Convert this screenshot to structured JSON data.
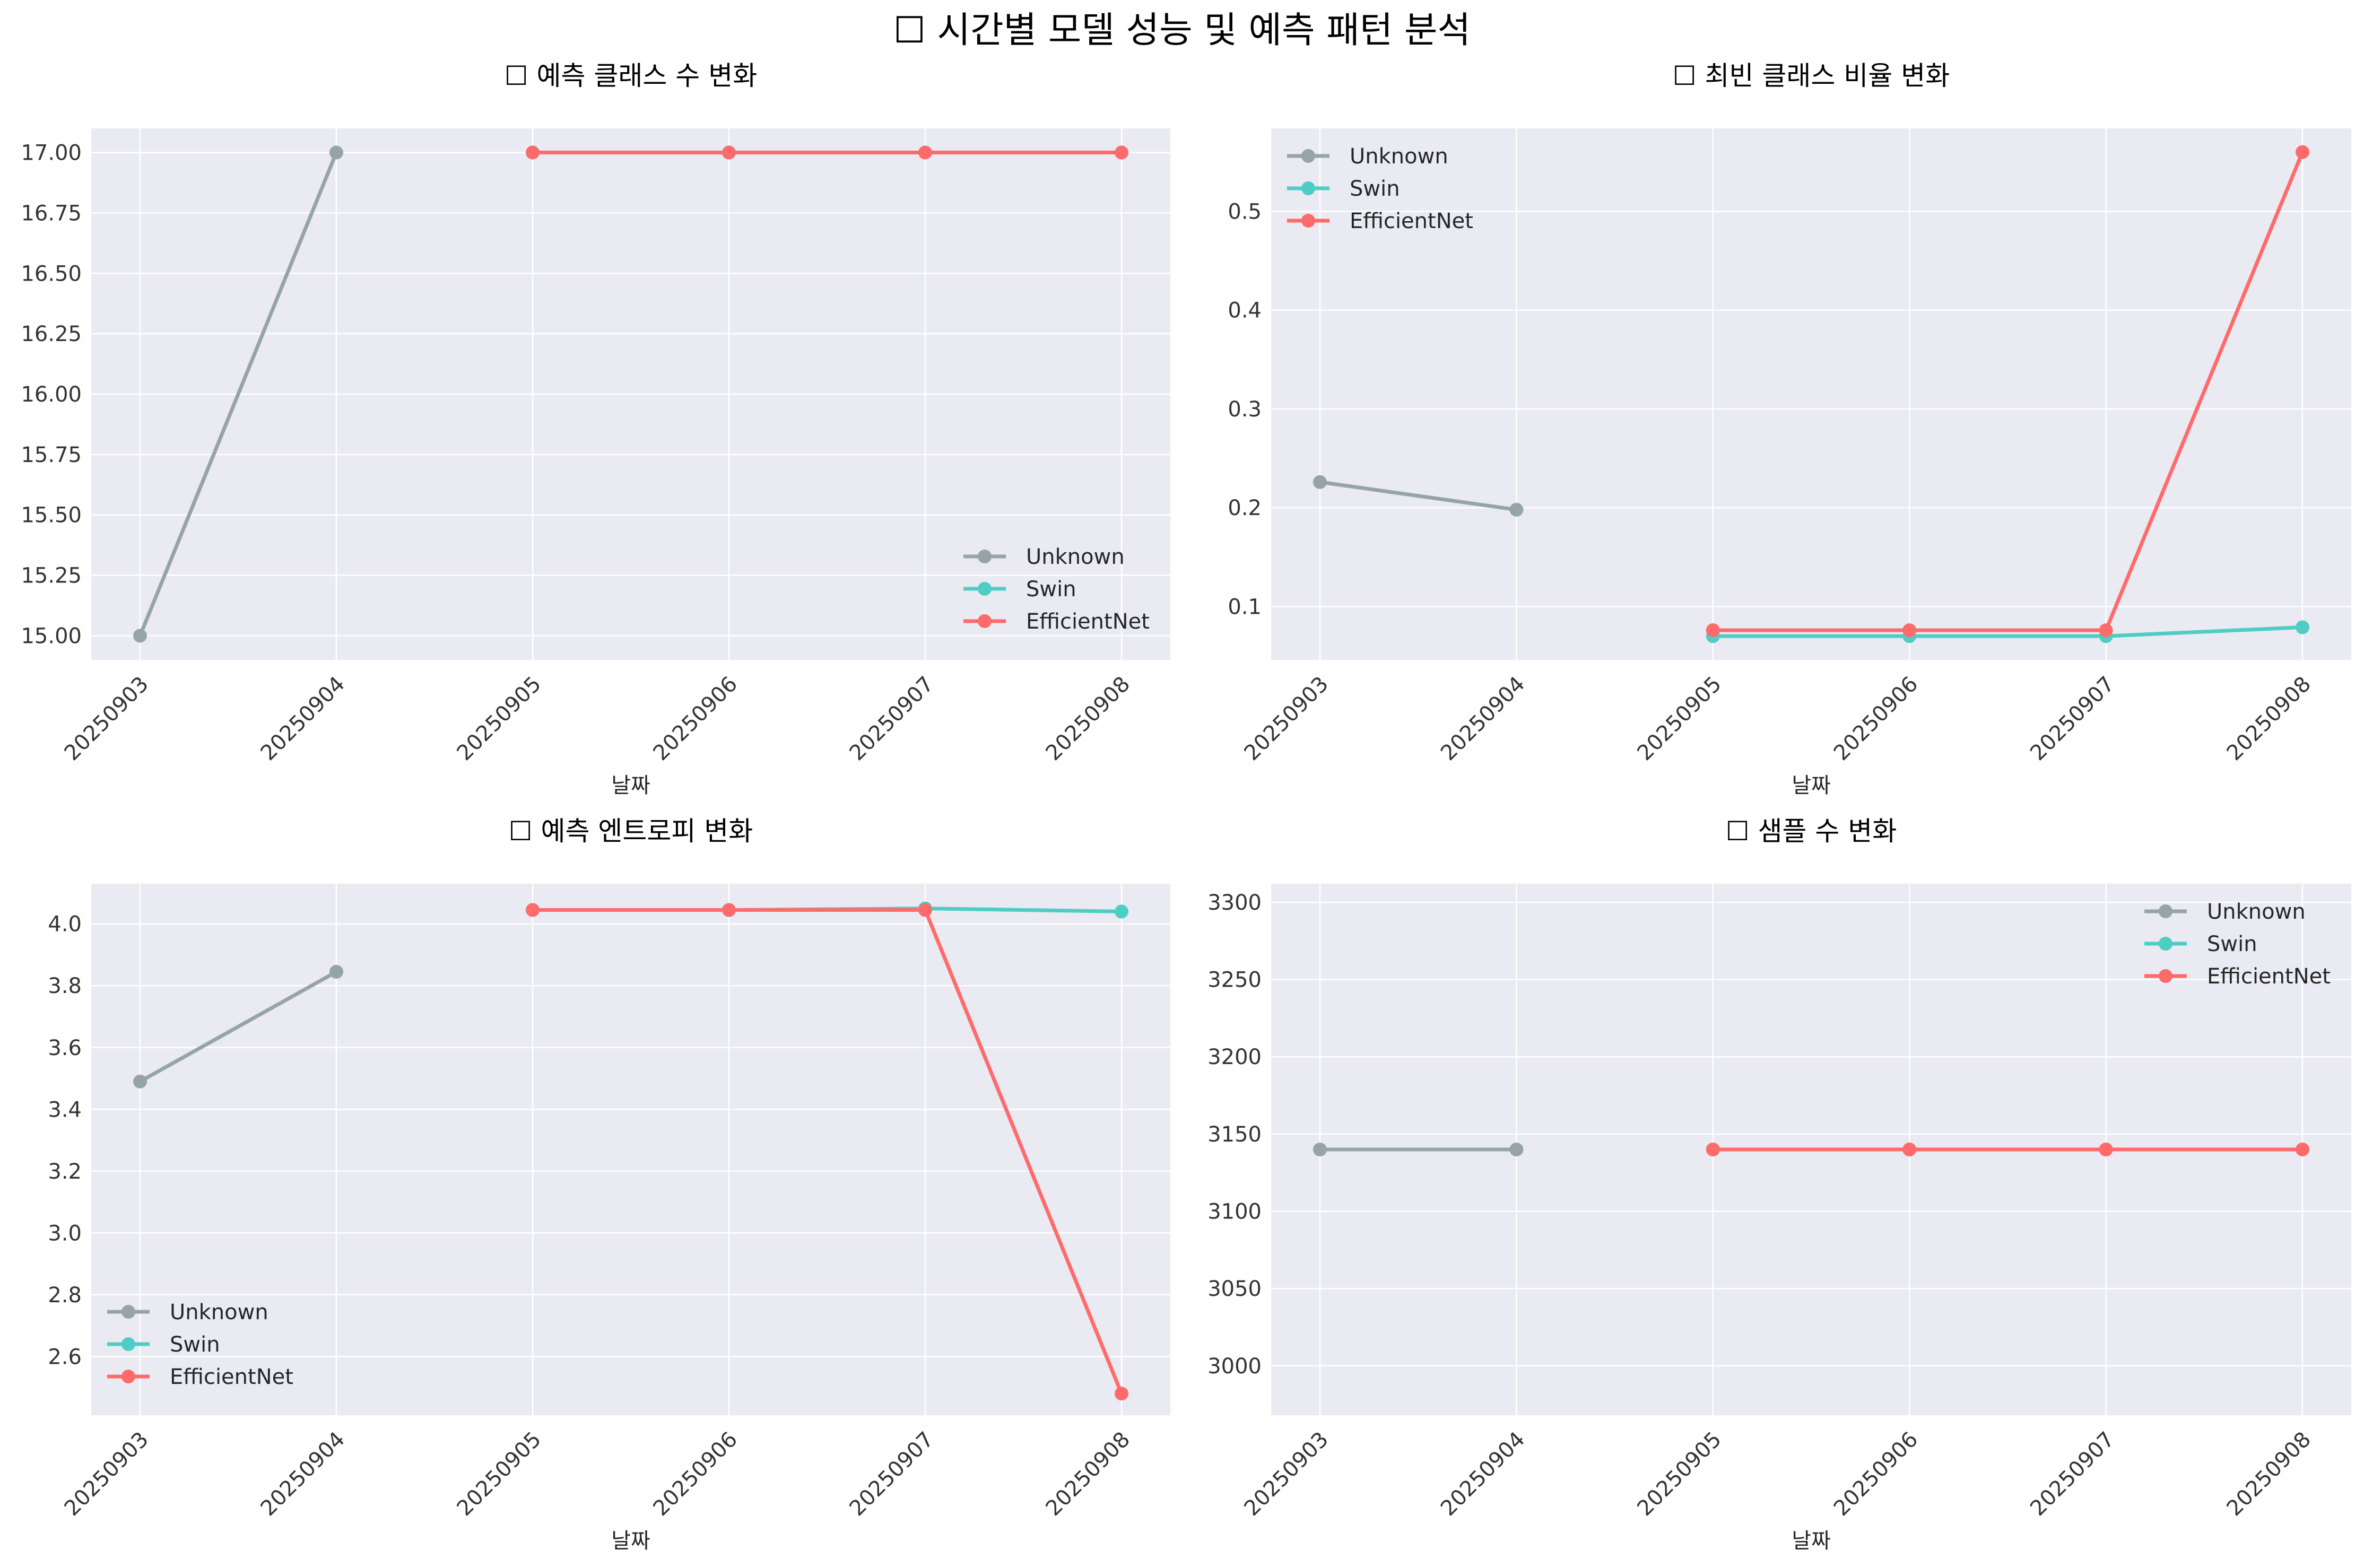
{
  "figure_title": "☐ 시간별 모델 성능 및 예측 패턴 분석",
  "colors": {
    "Unknown": "#95a5a6",
    "Swin": "#4ecdc4",
    "EfficientNet": "#ff6b6b",
    "plot_background": "#eaeaf2",
    "grid": "#ffffff"
  },
  "chart_data": [
    {
      "type": "line",
      "title": "☐ 예측 클래스 수 변화",
      "xlabel": "날짜",
      "ylabel": "",
      "x": [
        "20250903",
        "20250904",
        "20250905",
        "20250906",
        "20250907",
        "20250908"
      ],
      "ylim": [
        14.9,
        17.1
      ],
      "yticks": [
        "15.00",
        "15.25",
        "15.50",
        "15.75",
        "16.00",
        "16.25",
        "16.50",
        "16.75",
        "17.00"
      ],
      "grid": true,
      "legend_position": "lower-right",
      "series": [
        {
          "name": "Unknown",
          "values": [
            15,
            17,
            null,
            null,
            null,
            null
          ]
        },
        {
          "name": "Swin",
          "values": [
            null,
            null,
            17,
            17,
            17,
            17
          ]
        },
        {
          "name": "EfficientNet",
          "values": [
            null,
            null,
            17,
            17,
            17,
            17
          ]
        }
      ]
    },
    {
      "type": "line",
      "title": "☐ 최빈 클래스 비율 변화",
      "xlabel": "날짜",
      "ylabel": "",
      "x": [
        "20250903",
        "20250904",
        "20250905",
        "20250906",
        "20250907",
        "20250908"
      ],
      "ylim": [
        0.046,
        0.584
      ],
      "yticks": [
        "0.1",
        "0.2",
        "0.3",
        "0.4",
        "0.5"
      ],
      "grid": true,
      "legend_position": "upper-left",
      "series": [
        {
          "name": "Unknown",
          "values": [
            0.226,
            0.198,
            null,
            null,
            null,
            null
          ]
        },
        {
          "name": "Swin",
          "values": [
            null,
            null,
            0.07,
            0.07,
            0.07,
            0.079
          ]
        },
        {
          "name": "EfficientNet",
          "values": [
            null,
            null,
            0.076,
            0.076,
            0.076,
            0.56
          ]
        }
      ]
    },
    {
      "type": "line",
      "title": "☐ 예측 엔트로피 변화",
      "xlabel": "날짜",
      "ylabel": "",
      "x": [
        "20250903",
        "20250904",
        "20250905",
        "20250906",
        "20250907",
        "20250908"
      ],
      "ylim": [
        2.41,
        4.13
      ],
      "yticks": [
        "2.6",
        "2.8",
        "3.0",
        "3.2",
        "3.4",
        "3.6",
        "3.8",
        "4.0"
      ],
      "grid": true,
      "legend_position": "lower-left",
      "series": [
        {
          "name": "Unknown",
          "values": [
            3.49,
            3.845,
            null,
            null,
            null,
            null
          ]
        },
        {
          "name": "Swin",
          "values": [
            null,
            null,
            4.045,
            4.045,
            4.05,
            4.04
          ]
        },
        {
          "name": "EfficientNet",
          "values": [
            null,
            null,
            4.045,
            4.045,
            4.045,
            2.48
          ]
        }
      ]
    },
    {
      "type": "line",
      "title": "☐ 샘플 수 변화",
      "xlabel": "날짜",
      "ylabel": "",
      "x": [
        "20250903",
        "20250904",
        "20250905",
        "20250906",
        "20250907",
        "20250908"
      ],
      "ylim": [
        2968,
        3312
      ],
      "yticks": [
        "3000",
        "3050",
        "3100",
        "3150",
        "3200",
        "3250",
        "3300"
      ],
      "grid": true,
      "legend_position": "upper-right",
      "series": [
        {
          "name": "Unknown",
          "values": [
            3140,
            3140,
            null,
            null,
            null,
            null
          ]
        },
        {
          "name": "Swin",
          "values": [
            null,
            null,
            3140,
            3140,
            3140,
            3140
          ]
        },
        {
          "name": "EfficientNet",
          "values": [
            null,
            null,
            3140,
            3140,
            3140,
            3140
          ]
        }
      ]
    }
  ]
}
